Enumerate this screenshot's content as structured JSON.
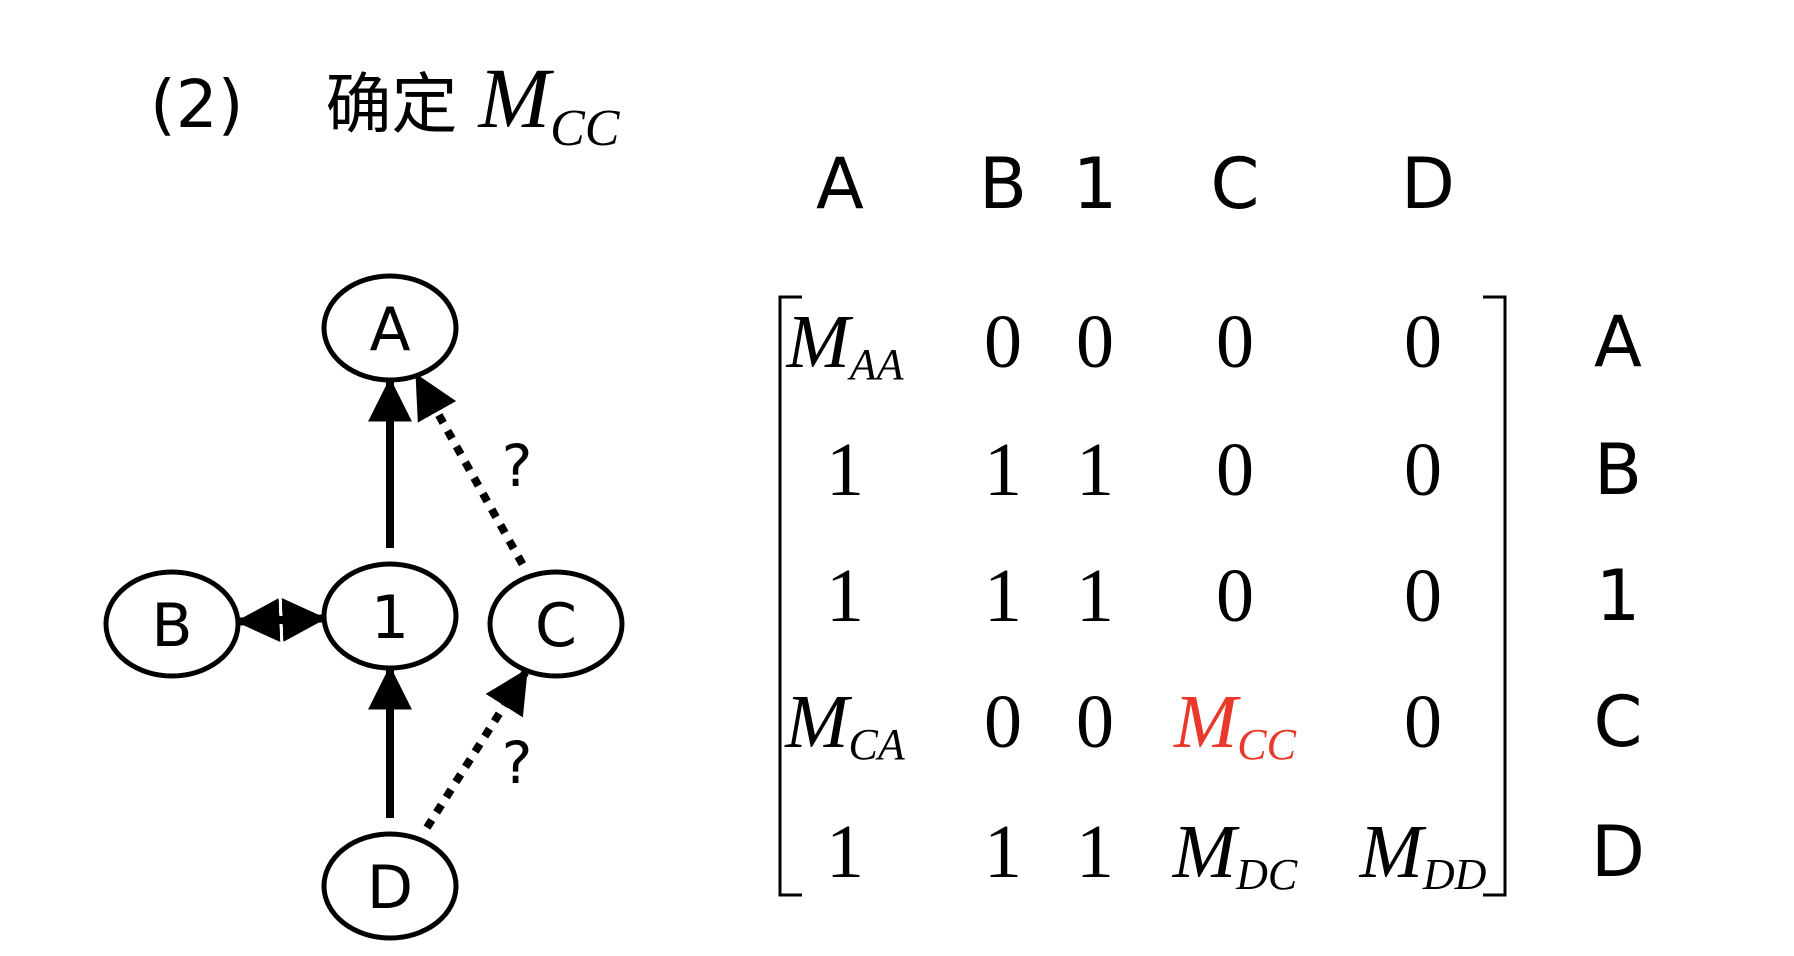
{
  "heading": {
    "index": "(2)",
    "verb": "确定",
    "symbol": "M",
    "symbol_sub": "CC"
  },
  "graph": {
    "nodes": [
      {
        "id": "A",
        "label": "A"
      },
      {
        "id": "B",
        "label": "B"
      },
      {
        "id": "1",
        "label": "1"
      },
      {
        "id": "C",
        "label": "C"
      },
      {
        "id": "D",
        "label": "D"
      }
    ],
    "edges": [
      {
        "from": "1",
        "to": "A",
        "style": "solid",
        "direction": "forward"
      },
      {
        "from": "B",
        "to": "1",
        "style": "solid",
        "direction": "both"
      },
      {
        "from": "D",
        "to": "1",
        "style": "solid",
        "direction": "forward"
      },
      {
        "from": "C",
        "to": "A",
        "style": "dotted",
        "direction": "forward",
        "label": "?"
      },
      {
        "from": "D",
        "to": "C",
        "style": "dotted",
        "direction": "forward",
        "label": "?"
      }
    ]
  },
  "matrix": {
    "column_labels": [
      "A",
      "B",
      "1",
      "C",
      "D"
    ],
    "row_labels": [
      "A",
      "B",
      "1",
      "C",
      "D"
    ],
    "highlight_color": "#e8392b",
    "rows": [
      [
        {
          "v": "M",
          "sub": "AA"
        },
        {
          "v": "0"
        },
        {
          "v": "0"
        },
        {
          "v": "0"
        },
        {
          "v": "0"
        }
      ],
      [
        {
          "v": "1"
        },
        {
          "v": "1"
        },
        {
          "v": "1"
        },
        {
          "v": "0"
        },
        {
          "v": "0"
        }
      ],
      [
        {
          "v": "1"
        },
        {
          "v": "1"
        },
        {
          "v": "1"
        },
        {
          "v": "0"
        },
        {
          "v": "0"
        }
      ],
      [
        {
          "v": "M",
          "sub": "CA"
        },
        {
          "v": "0"
        },
        {
          "v": "0"
        },
        {
          "v": "M",
          "sub": "CC",
          "highlight": true
        },
        {
          "v": "0"
        }
      ],
      [
        {
          "v": "1"
        },
        {
          "v": "1"
        },
        {
          "v": "1"
        },
        {
          "v": "M",
          "sub": "DC"
        },
        {
          "v": "M",
          "sub": "DD"
        }
      ]
    ]
  }
}
